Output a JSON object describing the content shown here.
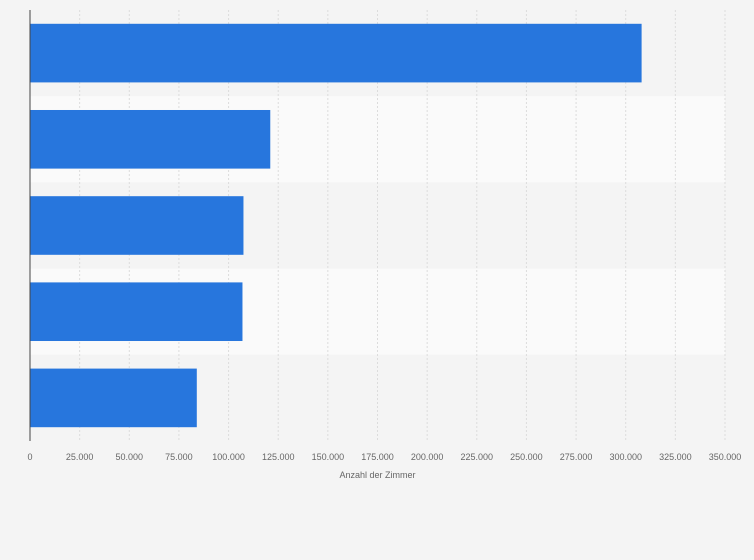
{
  "chart_data": {
    "type": "bar",
    "orientation": "horizontal",
    "categories": [
      "",
      "",
      "",
      "",
      ""
    ],
    "values": [
      308000,
      121000,
      107500,
      107000,
      84000
    ],
    "xlabel": "Anzahl der Zimmer",
    "ylabel": "",
    "xlim": [
      0,
      350000
    ],
    "x_ticks": [
      0,
      25000,
      50000,
      75000,
      100000,
      125000,
      150000,
      175000,
      200000,
      225000,
      250000,
      275000,
      300000,
      325000,
      350000
    ],
    "x_tick_labels": [
      "0",
      "25.000",
      "50.000",
      "75.000",
      "100.000",
      "125.000",
      "150.000",
      "175.000",
      "200.000",
      "225.000",
      "250.000",
      "275.000",
      "300.000",
      "325.000",
      "350.000"
    ],
    "grid": true,
    "bar_color": "#2776dd",
    "band_colors": [
      "#f4f4f4",
      "#fafafa"
    ],
    "gridline_color": "#dcdcdc",
    "axis_color": "#444444",
    "text_color": "#666666"
  }
}
